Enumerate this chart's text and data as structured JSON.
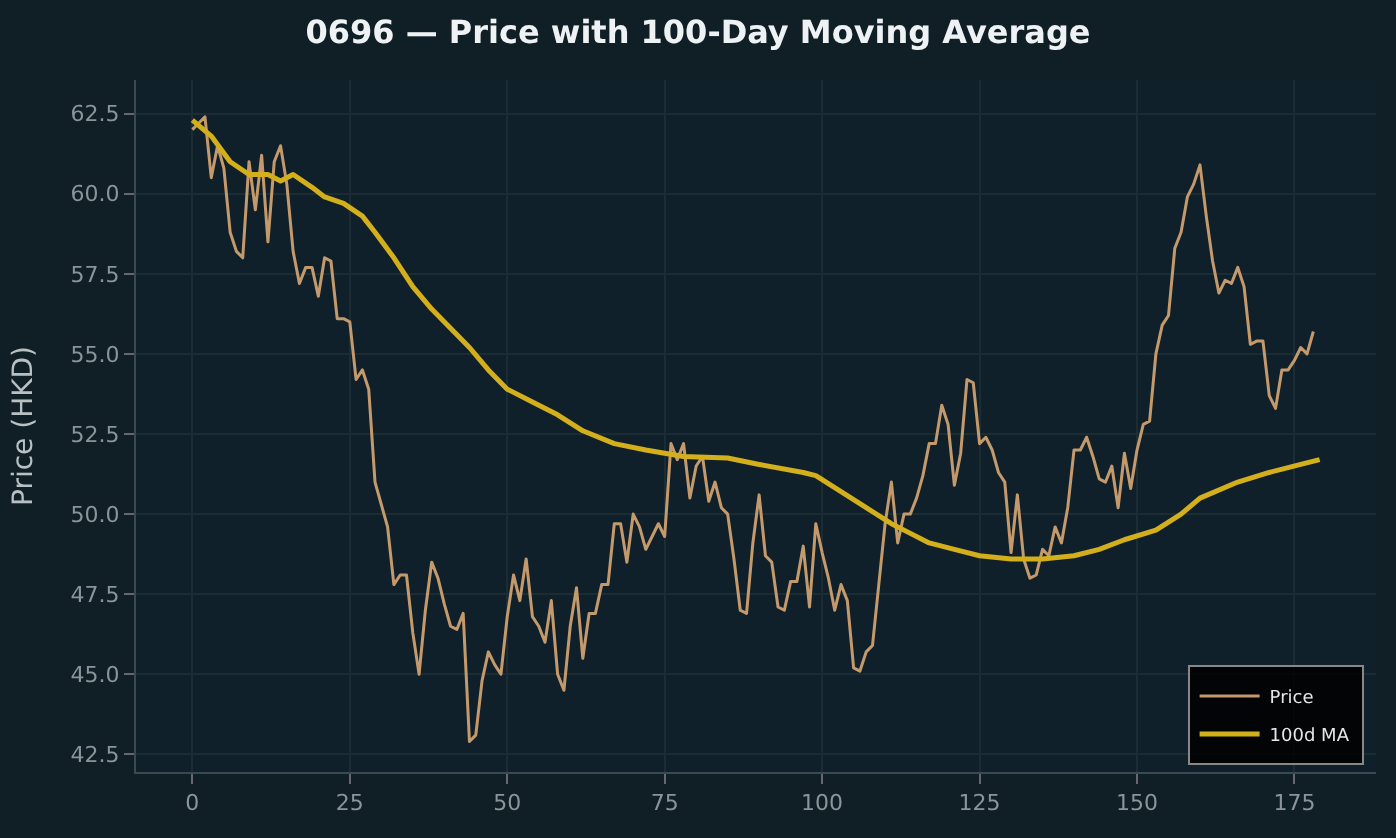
{
  "chart_data": {
    "type": "line",
    "title": "0696 — Price with 100-Day Moving Average",
    "ylabel": "Price (HKD)",
    "xlim": [
      -8.95,
      187.95
    ],
    "xticks": [
      0,
      25,
      50,
      75,
      100,
      125,
      150,
      175
    ],
    "ylim": [
      41.95,
      63.55
    ],
    "yticks": [
      {
        "value": 42.5,
        "label": "42.5"
      },
      {
        "value": 45,
        "label": "45.0"
      },
      {
        "value": 47.5,
        "label": "47.5"
      },
      {
        "value": 50,
        "label": "50.0"
      },
      {
        "value": 52.5,
        "label": "52.5"
      },
      {
        "value": 55,
        "label": "55.0"
      },
      {
        "value": 57.5,
        "label": "57.5"
      },
      {
        "value": 60,
        "label": "60.0"
      },
      {
        "value": 62.5,
        "label": "62.5"
      }
    ],
    "grid": true,
    "legend": "bottom right",
    "line_style": "solid",
    "marker": "none",
    "series": [
      {
        "name": "Price",
        "color": "#c49a6c",
        "x": [
          0,
          1,
          2,
          3,
          4,
          5,
          6,
          7,
          8,
          9,
          10,
          11,
          12,
          13,
          14,
          15,
          16,
          17,
          18,
          19,
          20,
          21,
          22,
          23,
          24,
          25,
          26,
          27,
          28,
          29,
          30,
          31,
          32,
          33,
          34,
          35,
          36,
          37,
          38,
          39,
          40,
          41,
          42,
          43,
          44,
          45,
          46,
          47,
          48,
          49,
          50,
          51,
          52,
          53,
          54,
          55,
          56,
          57,
          58,
          59,
          60,
          61,
          62,
          63,
          64,
          65,
          66,
          67,
          68,
          69,
          70,
          71,
          72,
          73,
          74,
          75,
          76,
          77,
          78,
          79,
          80,
          81,
          82,
          83,
          84,
          85,
          86,
          87,
          88,
          89,
          90,
          91,
          92,
          93,
          94,
          95,
          96,
          97,
          98,
          99,
          100,
          101,
          102,
          103,
          104,
          105,
          106,
          107,
          108,
          109,
          110,
          111,
          112,
          113,
          114,
          115,
          116,
          117,
          118,
          119,
          120,
          121,
          122,
          123,
          124,
          125,
          126,
          127,
          128,
          129,
          130,
          131,
          132,
          133,
          134,
          135,
          136,
          137,
          138,
          139,
          140,
          141,
          142,
          143,
          144,
          145,
          146,
          147,
          148,
          149,
          150,
          151,
          152,
          153,
          154,
          155,
          156,
          157,
          158,
          159,
          160,
          161,
          162,
          163,
          164,
          165,
          166,
          167,
          168,
          169,
          170,
          171,
          172,
          173,
          174,
          175,
          176,
          177,
          178
        ],
        "values": [
          62.0,
          62.2,
          62.4,
          60.5,
          61.5,
          60.8,
          58.8,
          58.2,
          58.0,
          61.0,
          59.5,
          61.2,
          58.5,
          61.0,
          61.5,
          60.3,
          58.2,
          57.2,
          57.7,
          57.7,
          56.8,
          58.0,
          57.9,
          56.1,
          56.1,
          56.0,
          54.2,
          54.5,
          53.9,
          51.0,
          50.3,
          49.6,
          47.8,
          48.1,
          48.1,
          46.3,
          45.0,
          47.0,
          48.5,
          48.0,
          47.2,
          46.5,
          46.4,
          46.9,
          42.9,
          43.1,
          44.8,
          45.7,
          45.3,
          45.0,
          46.8,
          48.1,
          47.3,
          48.6,
          46.8,
          46.5,
          46.0,
          47.3,
          45.0,
          44.5,
          46.5,
          47.7,
          45.5,
          46.9,
          46.9,
          47.8,
          47.8,
          49.7,
          49.7,
          48.5,
          50.0,
          49.6,
          48.9,
          49.3,
          49.7,
          49.3,
          52.2,
          51.7,
          52.2,
          50.5,
          51.5,
          51.8,
          50.4,
          51.0,
          50.2,
          50.0,
          48.6,
          47.0,
          46.9,
          49.1,
          50.6,
          48.7,
          48.5,
          47.1,
          47.0,
          47.9,
          47.9,
          49.0,
          47.1,
          49.7,
          48.8,
          48.0,
          47.0,
          47.8,
          47.3,
          45.2,
          45.1,
          45.7,
          45.9,
          47.8,
          49.7,
          51.0,
          49.1,
          50.0,
          50.0,
          50.5,
          51.2,
          52.2,
          52.2,
          53.4,
          52.8,
          50.9,
          51.9,
          54.2,
          54.1,
          52.2,
          52.4,
          52.0,
          51.3,
          51.0,
          48.8,
          50.6,
          48.6,
          48.0,
          48.1,
          48.9,
          48.7,
          49.6,
          49.1,
          50.2,
          52.0,
          52.0,
          52.4,
          51.8,
          51.1,
          51.0,
          51.5,
          50.2,
          51.9,
          50.8,
          52.0,
          52.8,
          52.9,
          55.0,
          55.9,
          56.2,
          58.3,
          58.8,
          59.9,
          60.3,
          60.9,
          59.3,
          57.9,
          56.9,
          57.3,
          57.2,
          57.7,
          57.1,
          55.3,
          55.4,
          55.4,
          53.7,
          53.3,
          54.5,
          54.5,
          54.8,
          55.2,
          55.0,
          55.7
        ]
      },
      {
        "name": "100d MA",
        "color": "#d4af1c",
        "x": [
          0,
          3,
          6,
          9,
          12,
          14,
          16,
          19,
          21,
          24,
          27,
          29,
          32,
          35,
          38,
          41,
          44,
          47,
          50,
          54,
          58,
          62,
          67,
          72,
          78,
          85,
          90,
          97,
          99,
          103,
          107,
          111,
          113,
          117,
          121,
          125,
          130,
          135,
          140,
          144,
          148,
          153,
          157,
          160,
          166,
          171,
          176,
          179
        ],
        "values": [
          62.3,
          61.8,
          61.0,
          60.6,
          60.6,
          60.4,
          60.6,
          60.2,
          59.9,
          59.7,
          59.3,
          58.8,
          58.0,
          57.1,
          56.4,
          55.8,
          55.2,
          54.5,
          53.9,
          53.5,
          53.1,
          52.6,
          52.2,
          52.0,
          51.8,
          51.75,
          51.55,
          51.3,
          51.2,
          50.7,
          50.2,
          49.7,
          49.5,
          49.1,
          48.9,
          48.7,
          48.6,
          48.6,
          48.7,
          48.9,
          49.2,
          49.5,
          50.0,
          50.5,
          51.0,
          51.3,
          51.55,
          51.7
        ]
      }
    ]
  }
}
